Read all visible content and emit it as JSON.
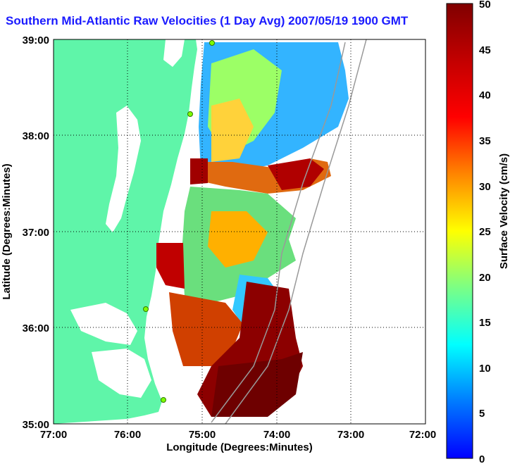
{
  "title": "Southern Mid-Atlantic Raw Velocities (1 Day Avg) 2007/05/19 1900 GMT",
  "x_axis": {
    "label": "Longitude (Degrees:Minutes)",
    "ticks": [
      "77:00",
      "76:00",
      "75:00",
      "74:00",
      "73:00",
      "72:00"
    ]
  },
  "y_axis": {
    "label": "Latitude (Degrees:Minutes)",
    "ticks": [
      "39:00",
      "38:00",
      "37:00",
      "36:00",
      "35:00"
    ]
  },
  "colorbar": {
    "label": "Surface Velocity (cm/s)",
    "ticks": [
      "50",
      "45",
      "40",
      "35",
      "30",
      "25",
      "20",
      "15",
      "10",
      "5",
      "0"
    ]
  },
  "colors": {
    "land": "#5ff5a9",
    "title": "#1a1aff",
    "background": "#ffffff"
  }
}
